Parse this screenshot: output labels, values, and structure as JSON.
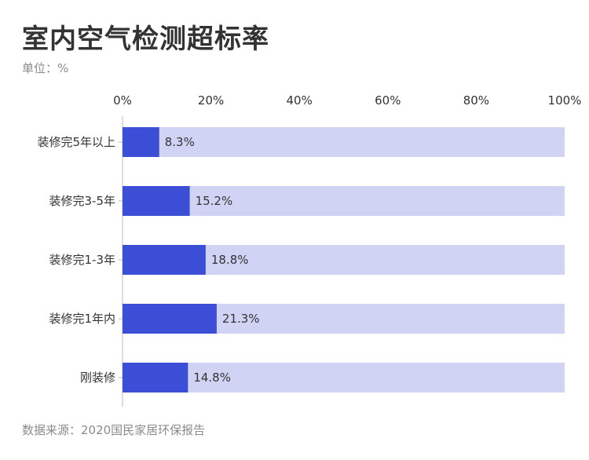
{
  "unit_prefix": "单位：",
  "chart_data": {
    "type": "bar",
    "orientation": "horizontal",
    "title": "室内空气检测超标率",
    "unit": "%",
    "source": "数据来源：2020国民家居环保报告",
    "categories": [
      "装修完5年以上",
      "装修完3-5年",
      "装修完1-3年",
      "装修完1年内",
      "刚装修"
    ],
    "values": [
      8.3,
      15.2,
      18.8,
      21.3,
      14.8
    ],
    "value_labels": [
      "8.3%",
      "15.2%",
      "18.8%",
      "21.3%",
      "14.8%"
    ],
    "background_value": 100,
    "xlim": [
      0,
      100
    ],
    "x_ticks": [
      0,
      20,
      40,
      60,
      80,
      100
    ],
    "x_tick_labels": [
      "0%",
      "20%",
      "40%",
      "60%",
      "80%",
      "100%"
    ],
    "xlabel": "",
    "ylabel": "",
    "x_axis_position": "top",
    "grid": false,
    "legend": false,
    "colors": {
      "bar": "#3d4ed6",
      "background": "#d1d3f5",
      "axis": "#bbbbbb"
    }
  }
}
